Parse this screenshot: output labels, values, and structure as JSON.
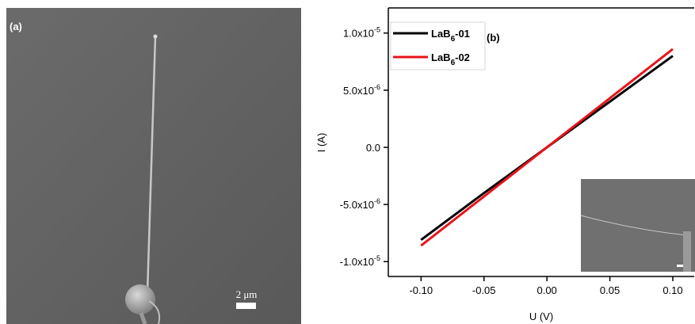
{
  "panel_a": {
    "label": "(a)",
    "scale_bar": "2 μm"
  },
  "chart_data": {
    "type": "line",
    "panel_label": "(b)",
    "x_label": "U (V)",
    "y_label": "I (A)",
    "x": [
      -0.1,
      -0.05,
      0,
      0.05,
      0.1
    ],
    "series": [
      {
        "name": "LaB6-01",
        "color": "#000000",
        "values": [
          -8.1e-06,
          -4e-06,
          0,
          4e-06,
          8e-06
        ]
      },
      {
        "name": "LaB6-02",
        "color": "#e8141b",
        "values": [
          -8.6e-06,
          -4.3e-06,
          0,
          4.3e-06,
          8.6e-06
        ]
      }
    ],
    "xlim": [
      -0.126,
      0.117
    ],
    "ylim": [
      -1.13e-05,
      1.22e-05
    ],
    "xticks": [
      {
        "value": -0.1,
        "label": "-0.10"
      },
      {
        "value": -0.05,
        "label": "-0.05"
      },
      {
        "value": 0,
        "label": "0.00"
      },
      {
        "value": 0.05,
        "label": "0.05"
      },
      {
        "value": 0.1,
        "label": "0.10"
      }
    ],
    "yticks": [
      {
        "value": -1e-05,
        "label": "-1.0x10-5"
      },
      {
        "value": -5e-06,
        "label": "-5.0x10-6"
      },
      {
        "value": 0,
        "label": "0.0"
      },
      {
        "value": 5e-06,
        "label": "5.0x10-6"
      },
      {
        "value": 1e-05,
        "label": "1.0x10-5"
      }
    ],
    "legend": "upper left"
  }
}
